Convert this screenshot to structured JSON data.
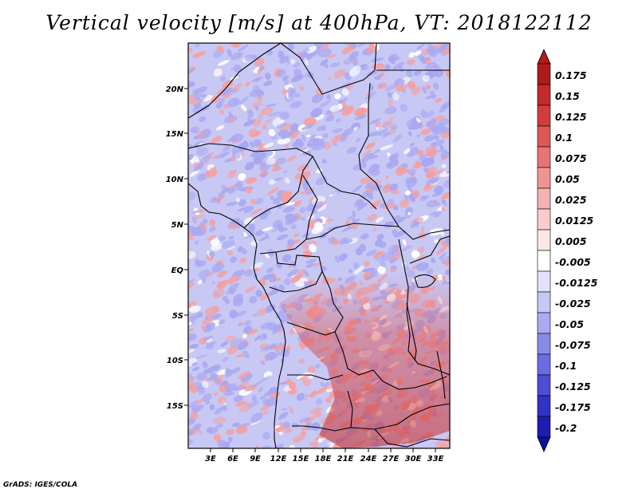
{
  "title": "Vertical velocity [m/s] at 400hPa, VT: 2018122112",
  "credit": "GrADS: IGES/COLA",
  "map": {
    "lat_ticks": [
      "20N",
      "15N",
      "10N",
      "5N",
      "EQ",
      "5S",
      "10S",
      "15S"
    ],
    "lon_ticks": [
      "3E",
      "6E",
      "9E",
      "12E",
      "15E",
      "18E",
      "21E",
      "24E",
      "27E",
      "30E",
      "33E"
    ],
    "color_neutral": "#ffffff",
    "color_positive": "#f4a0a0",
    "color_negative": "#a8a8f2",
    "color_coast": "#000000"
  },
  "colorbar": {
    "labels": [
      "0.175",
      "0.15",
      "0.125",
      "0.1",
      "0.075",
      "0.05",
      "0.025",
      "0.0125",
      "0.005",
      "-0.005",
      "-0.0125",
      "-0.025",
      "-0.05",
      "-0.075",
      "-0.1",
      "-0.125",
      "-0.175",
      "-0.2"
    ],
    "colors": [
      "#b01a1a",
      "#c42a2a",
      "#d33c3c",
      "#df5656",
      "#e87474",
      "#ef9494",
      "#f4b2b2",
      "#f8cccc",
      "#fce6e6",
      "#ffffff",
      "#e2e2fb",
      "#c7c7f6",
      "#aaaaf1",
      "#8a8aea",
      "#6b6be2",
      "#4d4dd6",
      "#3232c6",
      "#1d1db0",
      "#10109a"
    ]
  }
}
